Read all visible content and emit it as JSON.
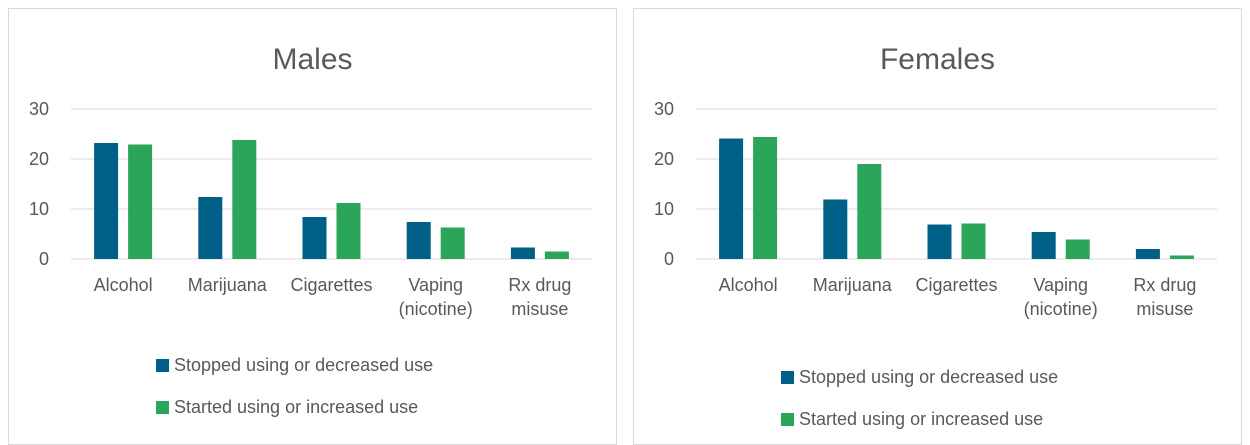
{
  "colors": {
    "stopped": "#005f86",
    "started": "#2aa55a",
    "grid": "#d9d9d9",
    "text": "#595959"
  },
  "chart_data": [
    {
      "type": "bar",
      "title": "Males",
      "categories": [
        [
          "Alcohol"
        ],
        [
          "Marijuana"
        ],
        [
          "Cigarettes"
        ],
        [
          "Vaping",
          "(nicotine)"
        ],
        [
          "Rx drug",
          "misuse"
        ]
      ],
      "series": [
        {
          "name": "Stopped using or decreased use",
          "values": [
            23.2,
            12.4,
            8.4,
            7.4,
            2.3
          ]
        },
        {
          "name": "Started using or increased use",
          "values": [
            22.9,
            23.8,
            11.2,
            6.3,
            1.5
          ]
        }
      ],
      "yticks": [
        0,
        10,
        20,
        30
      ],
      "ylim": [
        0,
        30
      ],
      "grid": true,
      "legend": "bottom"
    },
    {
      "type": "bar",
      "title": "Females",
      "categories": [
        [
          "Alcohol"
        ],
        [
          "Marijuana"
        ],
        [
          "Cigarettes"
        ],
        [
          "Vaping",
          "(nicotine)"
        ],
        [
          "Rx drug",
          "misuse"
        ]
      ],
      "series": [
        {
          "name": "Stopped using or decreased use",
          "values": [
            24.1,
            11.9,
            6.9,
            5.4,
            2.0
          ]
        },
        {
          "name": "Started using or increased use",
          "values": [
            24.4,
            19.0,
            7.1,
            3.9,
            0.7
          ]
        }
      ],
      "yticks": [
        0,
        10,
        20,
        30
      ],
      "ylim": [
        0,
        30
      ],
      "grid": true,
      "legend": "bottom"
    }
  ]
}
